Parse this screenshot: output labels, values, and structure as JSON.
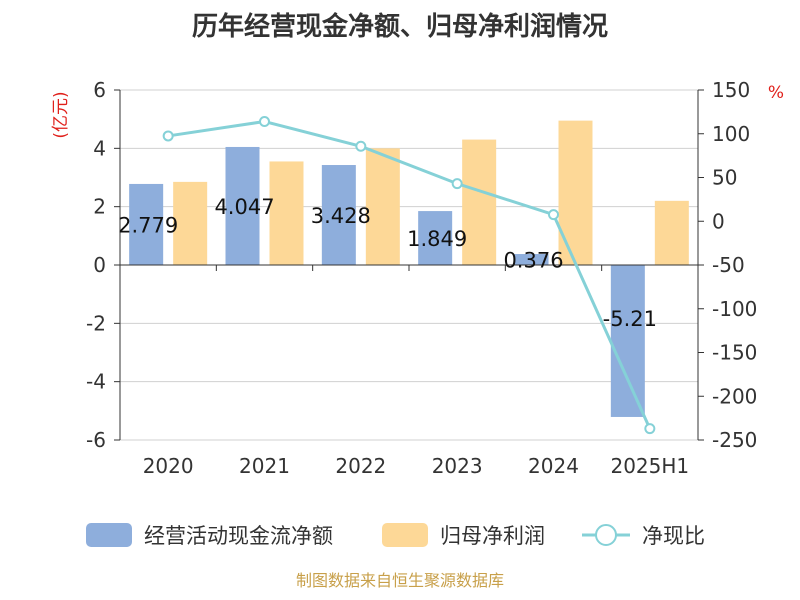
{
  "chart_data": {
    "type": "bar",
    "title": "历年经营现金净额、归母净利润情况",
    "categories": [
      "2020",
      "2021",
      "2022",
      "2023",
      "2024",
      "2025H1"
    ],
    "left_axis": {
      "unit": "(亿元)",
      "range": [
        -6,
        6
      ],
      "ticks": [
        6,
        4,
        2,
        0,
        -2,
        -4,
        -6
      ]
    },
    "right_axis": {
      "unit": "%",
      "range": [
        -250,
        150
      ],
      "ticks": [
        150,
        100,
        50,
        0,
        -50,
        -100,
        -150,
        -200,
        -250
      ]
    },
    "grid": true,
    "legend_position": "bottom",
    "series": [
      {
        "name": "经营活动现金流净额",
        "kind": "bar",
        "axis": "left",
        "color": "#8eaedc",
        "values": [
          2.779,
          4.047,
          3.428,
          1.849,
          0.376,
          -5.21
        ],
        "labels": [
          "2.779",
          "4.047",
          "3.428",
          "1.849",
          "0.376",
          "-5.21"
        ]
      },
      {
        "name": "归母净利润",
        "kind": "bar",
        "axis": "left",
        "color": "#fdd897",
        "values": [
          2.85,
          3.55,
          4.0,
          4.3,
          4.95,
          2.2
        ]
      },
      {
        "name": "净现比",
        "kind": "line",
        "axis": "right",
        "color": "#85d1d7",
        "values": [
          97.5,
          114,
          85.7,
          43,
          7.6,
          -237
        ]
      }
    ]
  },
  "source": "制图数据来自恒生聚源数据库"
}
